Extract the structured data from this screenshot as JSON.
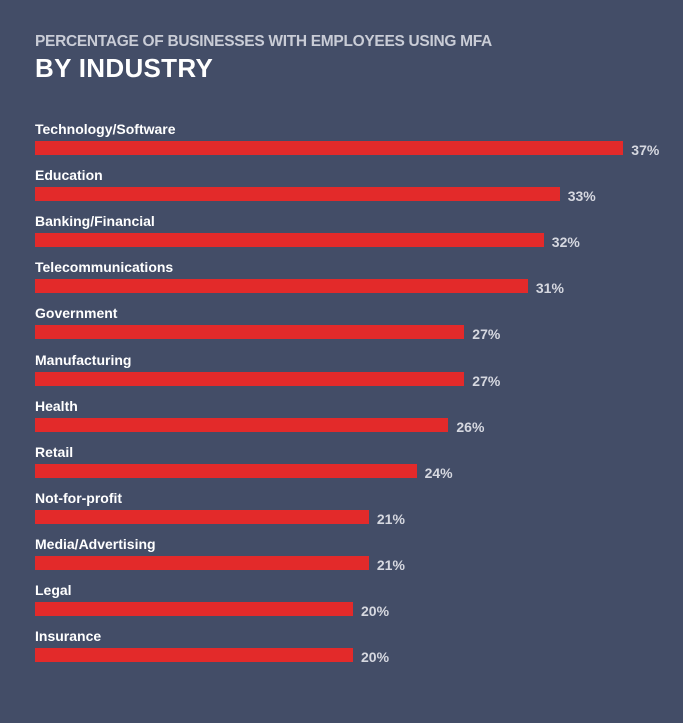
{
  "chart_data": {
    "type": "bar",
    "orientation": "horizontal",
    "subtitle": "PERCENTAGE OF BUSINESSES WITH EMPLOYEES USING MFA",
    "title": "BY INDUSTRY",
    "categories": [
      "Technology/Software",
      "Education",
      "Banking/Financial",
      "Telecommunications",
      "Government",
      "Manufacturing",
      "Health",
      "Retail",
      "Not-for-profit",
      "Media/Advertising",
      "Legal",
      "Insurance"
    ],
    "values": [
      37,
      33,
      32,
      31,
      27,
      27,
      26,
      24,
      21,
      21,
      20,
      20
    ],
    "value_labels": [
      "37%",
      "33%",
      "32%",
      "31%",
      "27%",
      "27%",
      "26%",
      "24%",
      "21%",
      "21%",
      "20%",
      "20%"
    ],
    "unit": "%",
    "grid": false,
    "colors": {
      "background": "#434d67",
      "bar": "#e32a2a",
      "text": "#ffffff"
    }
  }
}
